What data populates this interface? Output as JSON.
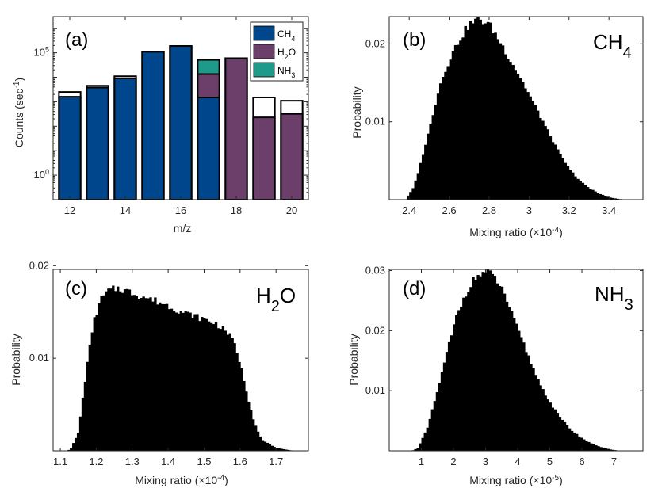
{
  "figure": {
    "panels": [
      "a",
      "b",
      "c",
      "d"
    ]
  },
  "colors": {
    "ch4": "#00468c",
    "h2o": "#6b3f6a",
    "nh3": "#1e9a8a",
    "total": "#ffffff",
    "hist": "#000000",
    "frame": "#262626"
  },
  "chart_data": [
    {
      "id": "a",
      "type": "bar",
      "panel_label": "(a)",
      "title": "",
      "xlabel": "m/z",
      "ylabel_text": "Counts (sec",
      "ylabel_sup": "-1",
      "ylabel_close": ")",
      "yscale": "log",
      "ylim": [
        0.1,
        3000000
      ],
      "xlim": [
        11.4,
        20.6
      ],
      "xticks": [
        12,
        14,
        16,
        18,
        20
      ],
      "ytick_labels": [
        {
          "value": 1,
          "base": "10",
          "exp": "0"
        },
        {
          "value": 100000,
          "base": "10",
          "exp": "5"
        }
      ],
      "categories": [
        12,
        13,
        14,
        15,
        16,
        17,
        18,
        19,
        20
      ],
      "totals": [
        2500,
        4500,
        11000,
        110000,
        190000,
        40000,
        60000,
        1500,
        1100
      ],
      "series": [
        {
          "name": "CH4",
          "sub": "4",
          "label": "CH",
          "color_key": "ch4",
          "values": [
            1600,
            3800,
            9000,
            110000,
            190000,
            1500,
            0,
            0,
            0
          ]
        },
        {
          "name": "H2O",
          "label_pre": "H",
          "sub": "2",
          "label_post": "O",
          "color_key": "h2o",
          "values": [
            0,
            0,
            0,
            0,
            0,
            12000,
            60000,
            230,
            320
          ]
        },
        {
          "name": "NH3",
          "label": "NH",
          "sub": "3",
          "color_key": "nh3",
          "values": [
            0,
            0,
            0,
            0,
            0,
            38000,
            0,
            0,
            0
          ]
        }
      ],
      "legend": {
        "location": "top-right"
      }
    },
    {
      "id": "b",
      "type": "histogram",
      "panel_label": "(b)",
      "species_main": "CH",
      "species_sub": "4",
      "species_post": "",
      "xlabel": "Mixing ratio (×10",
      "xlabel_exp": "-4",
      "xlabel_close": ")",
      "ylabel": "Probability",
      "xlim": [
        2.3,
        3.57
      ],
      "ylim": [
        0,
        0.0235
      ],
      "xticks": [
        "2.4",
        "2.6",
        "2.8",
        "3",
        "3.2",
        "3.4"
      ],
      "xtick_values": [
        2.4,
        2.6,
        2.8,
        3.0,
        3.2,
        3.4
      ],
      "yticks": [
        "0.01",
        "0.02"
      ],
      "ytick_values": [
        0.01,
        0.02
      ],
      "bins": {
        "start": 2.35,
        "width": 0.0125
      },
      "shape": [
        [
          2.35,
          0
        ],
        [
          2.38,
          0
        ],
        [
          2.42,
          0.0015
        ],
        [
          2.45,
          0.004
        ],
        [
          2.5,
          0.009
        ],
        [
          2.55,
          0.0145
        ],
        [
          2.6,
          0.018
        ],
        [
          2.65,
          0.0205
        ],
        [
          2.7,
          0.0225
        ],
        [
          2.75,
          0.0232
        ],
        [
          2.8,
          0.0225
        ],
        [
          2.85,
          0.0205
        ],
        [
          2.9,
          0.0182
        ],
        [
          2.95,
          0.016
        ],
        [
          3.0,
          0.0135
        ],
        [
          3.05,
          0.011
        ],
        [
          3.1,
          0.0085
        ],
        [
          3.15,
          0.006
        ],
        [
          3.2,
          0.004
        ],
        [
          3.25,
          0.0025
        ],
        [
          3.3,
          0.0015
        ],
        [
          3.35,
          0.0008
        ],
        [
          3.4,
          0.0003
        ],
        [
          3.45,
          8e-05
        ],
        [
          3.5,
          0
        ]
      ]
    },
    {
      "id": "c",
      "type": "histogram",
      "panel_label": "(c)",
      "species_main": "H",
      "species_sub": "2",
      "species_post": "O",
      "xlabel": "Mixing ratio (×10",
      "xlabel_exp": "-4",
      "xlabel_close": ")",
      "ylabel": "Probability",
      "xlim": [
        1.08,
        1.79
      ],
      "ylim": [
        0,
        0.0196
      ],
      "xticks": [
        "1.1",
        "1.2",
        "1.3",
        "1.4",
        "1.5",
        "1.6",
        "1.7"
      ],
      "xtick_values": [
        1.1,
        1.2,
        1.3,
        1.4,
        1.5,
        1.6,
        1.7
      ],
      "yticks": [
        "0.01",
        "0.02"
      ],
      "ytick_values": [
        0.01,
        0.02
      ],
      "bins": {
        "start": 1.12,
        "width": 0.0065
      },
      "shape": [
        [
          1.12,
          0
        ],
        [
          1.13,
          0.0003
        ],
        [
          1.15,
          0.002
        ],
        [
          1.17,
          0.008
        ],
        [
          1.19,
          0.0135
        ],
        [
          1.21,
          0.0162
        ],
        [
          1.23,
          0.0172
        ],
        [
          1.26,
          0.0176
        ],
        [
          1.29,
          0.0172
        ],
        [
          1.32,
          0.0168
        ],
        [
          1.35,
          0.0164
        ],
        [
          1.38,
          0.016
        ],
        [
          1.41,
          0.0155
        ],
        [
          1.44,
          0.015
        ],
        [
          1.47,
          0.0146
        ],
        [
          1.5,
          0.0142
        ],
        [
          1.53,
          0.0138
        ],
        [
          1.56,
          0.013
        ],
        [
          1.58,
          0.012
        ],
        [
          1.6,
          0.0095
        ],
        [
          1.62,
          0.006
        ],
        [
          1.64,
          0.003
        ],
        [
          1.66,
          0.0012
        ],
        [
          1.7,
          0.0003
        ],
        [
          1.75,
          0
        ]
      ]
    },
    {
      "id": "d",
      "type": "histogram",
      "panel_label": "(d)",
      "species_main": "NH",
      "species_sub": "3",
      "species_post": "",
      "xlabel": "Mixing ratio (×10",
      "xlabel_exp": "-5",
      "xlabel_close": ")",
      "ylabel": "Probability",
      "xlim": [
        0.0,
        7.9
      ],
      "ylim": [
        0,
        0.0302
      ],
      "xticks": [
        "1",
        "2",
        "3",
        "4",
        "5",
        "6",
        "7"
      ],
      "xtick_values": [
        1,
        2,
        3,
        4,
        5,
        6,
        7
      ],
      "yticks": [
        "0.01",
        "0.02",
        "0.03"
      ],
      "ytick_values": [
        0.01,
        0.02,
        0.03
      ],
      "bins": {
        "start": 0.7,
        "width": 0.075
      },
      "shape": [
        [
          0.7,
          0
        ],
        [
          0.9,
          0.0005
        ],
        [
          1.2,
          0.004
        ],
        [
          1.5,
          0.01
        ],
        [
          1.8,
          0.0165
        ],
        [
          2.1,
          0.0225
        ],
        [
          2.4,
          0.0265
        ],
        [
          2.7,
          0.029
        ],
        [
          3.0,
          0.0298
        ],
        [
          3.3,
          0.0288
        ],
        [
          3.6,
          0.026
        ],
        [
          3.9,
          0.0215
        ],
        [
          4.2,
          0.0175
        ],
        [
          4.5,
          0.0135
        ],
        [
          4.8,
          0.01
        ],
        [
          5.1,
          0.0072
        ],
        [
          5.4,
          0.005
        ],
        [
          5.7,
          0.0033
        ],
        [
          6.0,
          0.0021
        ],
        [
          6.3,
          0.0012
        ],
        [
          6.6,
          0.0006
        ],
        [
          6.9,
          0.0002
        ],
        [
          7.2,
          0
        ]
      ]
    }
  ]
}
